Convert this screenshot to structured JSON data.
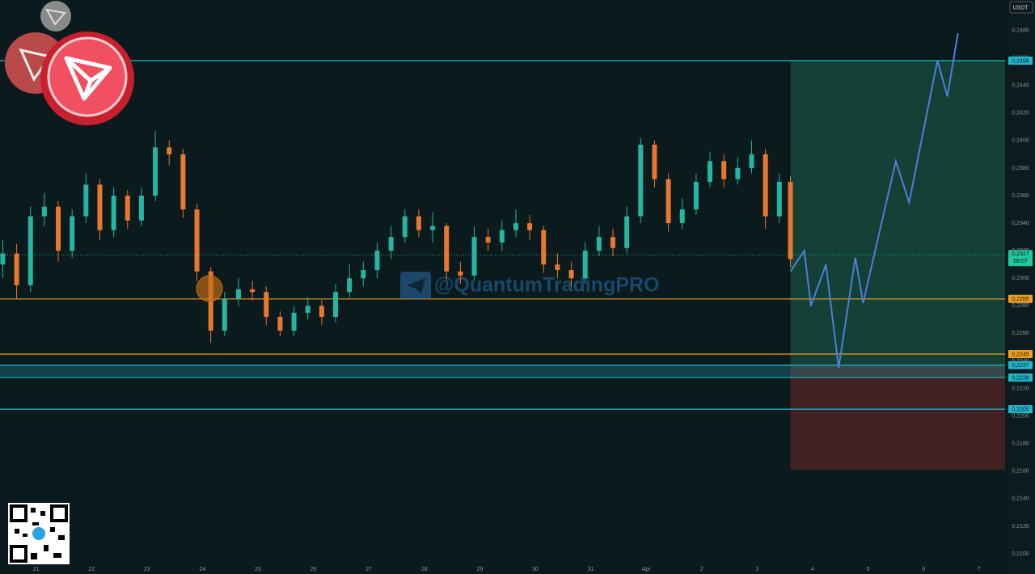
{
  "chart_data": {
    "type": "candlestick",
    "currency": "USDT",
    "watermark": "@QuantumTradingPRO",
    "up_color": "#26b5a0",
    "down_color": "#e8782f",
    "xlim": [
      -0.65,
      17.47
    ],
    "ylim": [
      0.2093,
      0.2502
    ],
    "xticks": [
      {
        "value": 0,
        "label": "21"
      },
      {
        "value": 1,
        "label": "22"
      },
      {
        "value": 2,
        "label": "23"
      },
      {
        "value": 3,
        "label": "24"
      },
      {
        "value": 4,
        "label": "25"
      },
      {
        "value": 5,
        "label": "26"
      },
      {
        "value": 6,
        "label": "27"
      },
      {
        "value": 7,
        "label": "28"
      },
      {
        "value": 8,
        "label": "29"
      },
      {
        "value": 9,
        "label": "30"
      },
      {
        "value": 10,
        "label": "31"
      },
      {
        "value": 11,
        "label": "Apr"
      },
      {
        "value": 12,
        "label": "2"
      },
      {
        "value": 13,
        "label": "3"
      },
      {
        "value": 14,
        "label": "4"
      },
      {
        "value": 15,
        "label": "5"
      },
      {
        "value": 16,
        "label": "6"
      },
      {
        "value": 17,
        "label": "7"
      }
    ],
    "yticks": [
      {
        "value": 0.21,
        "label": "0,2100"
      },
      {
        "value": 0.212,
        "label": "0,2120"
      },
      {
        "value": 0.214,
        "label": "0,2140"
      },
      {
        "value": 0.216,
        "label": "0,2160"
      },
      {
        "value": 0.218,
        "label": "0,2180"
      },
      {
        "value": 0.22,
        "label": "0,2200"
      },
      {
        "value": 0.222,
        "label": "0,2220"
      },
      {
        "value": 0.224,
        "label": "0,2240"
      },
      {
        "value": 0.226,
        "label": "0,2260"
      },
      {
        "value": 0.228,
        "label": "0,2280"
      },
      {
        "value": 0.23,
        "label": "0,2300"
      },
      {
        "value": 0.232,
        "label": "0,2320"
      },
      {
        "value": 0.234,
        "label": "0,2340"
      },
      {
        "value": 0.236,
        "label": "0,2360"
      },
      {
        "value": 0.238,
        "label": "0,2380"
      },
      {
        "value": 0.24,
        "label": "0,2400"
      },
      {
        "value": 0.242,
        "label": "0,2420"
      },
      {
        "value": 0.244,
        "label": "0,2440"
      },
      {
        "value": 0.246,
        "label": "0,2460"
      },
      {
        "value": 0.248,
        "label": "0,2480"
      }
    ],
    "x": [
      -0.6,
      -0.35,
      -0.1,
      0.15,
      0.4,
      0.65,
      0.9,
      1.15,
      1.4,
      1.65,
      1.9,
      2.15,
      2.4,
      2.65,
      2.9,
      3.15,
      3.4,
      3.65,
      3.9,
      4.15,
      4.4,
      4.65,
      4.9,
      5.15,
      5.4,
      5.65,
      5.9,
      6.15,
      6.4,
      6.65,
      6.9,
      7.15,
      7.4,
      7.65,
      7.9,
      8.15,
      8.4,
      8.65,
      8.9,
      9.15,
      9.4,
      9.65,
      9.9,
      10.15,
      10.4,
      10.65,
      10.9,
      11.15,
      11.4,
      11.65,
      11.9,
      12.15,
      12.4,
      12.65,
      12.9,
      13.15,
      13.4,
      13.6
    ],
    "open": [
      0.231,
      0.2318,
      0.2295,
      0.2345,
      0.2352,
      0.232,
      0.2345,
      0.2368,
      0.2335,
      0.236,
      0.2342,
      0.236,
      0.2395,
      0.239,
      0.235,
      0.2305,
      0.2262,
      0.2285,
      0.2292,
      0.229,
      0.2272,
      0.2262,
      0.2275,
      0.228,
      0.2272,
      0.229,
      0.23,
      0.2306,
      0.232,
      0.233,
      0.2345,
      0.2335,
      0.2338,
      0.2305,
      0.2302,
      0.233,
      0.2326,
      0.2335,
      0.234,
      0.2335,
      0.231,
      0.2306,
      0.23,
      0.232,
      0.233,
      0.2322,
      0.2345,
      0.2397,
      0.2372,
      0.234,
      0.235,
      0.237,
      0.2385,
      0.2372,
      0.238,
      0.239,
      0.2345,
      0.237
    ],
    "close": [
      0.2318,
      0.2295,
      0.2345,
      0.2352,
      0.232,
      0.2345,
      0.2368,
      0.2335,
      0.236,
      0.2342,
      0.236,
      0.2395,
      0.239,
      0.235,
      0.2305,
      0.2262,
      0.2285,
      0.2292,
      0.229,
      0.2272,
      0.2262,
      0.2275,
      0.228,
      0.2272,
      0.229,
      0.23,
      0.2306,
      0.232,
      0.233,
      0.2345,
      0.2335,
      0.2338,
      0.2305,
      0.2302,
      0.233,
      0.2326,
      0.2335,
      0.234,
      0.2335,
      0.231,
      0.2306,
      0.23,
      0.232,
      0.233,
      0.2322,
      0.2345,
      0.2397,
      0.2372,
      0.234,
      0.235,
      0.237,
      0.2385,
      0.2372,
      0.238,
      0.239,
      0.2345,
      0.237,
      0.2314
    ],
    "high": [
      0.2328,
      0.2325,
      0.2352,
      0.2362,
      0.2356,
      0.235,
      0.2376,
      0.2372,
      0.2366,
      0.2364,
      0.2366,
      0.2407,
      0.24,
      0.2394,
      0.2354,
      0.2308,
      0.229,
      0.23,
      0.2298,
      0.2294,
      0.2276,
      0.228,
      0.2286,
      0.2284,
      0.2296,
      0.231,
      0.2312,
      0.2326,
      0.2338,
      0.235,
      0.235,
      0.2348,
      0.234,
      0.2312,
      0.2338,
      0.2336,
      0.2342,
      0.235,
      0.2346,
      0.2338,
      0.2318,
      0.2312,
      0.2326,
      0.2338,
      0.2336,
      0.2352,
      0.2402,
      0.24,
      0.2376,
      0.2358,
      0.2376,
      0.2392,
      0.239,
      0.2388,
      0.24,
      0.2394,
      0.2376,
      0.2374
    ],
    "low": [
      0.23,
      0.2285,
      0.229,
      0.2338,
      0.2312,
      0.2315,
      0.234,
      0.2328,
      0.233,
      0.2336,
      0.2338,
      0.2356,
      0.2382,
      0.2344,
      0.2298,
      0.2253,
      0.2258,
      0.228,
      0.2284,
      0.2266,
      0.2258,
      0.2258,
      0.227,
      0.2266,
      0.2268,
      0.2286,
      0.2294,
      0.23,
      0.2314,
      0.2326,
      0.233,
      0.2326,
      0.2298,
      0.2296,
      0.2298,
      0.232,
      0.232,
      0.233,
      0.2328,
      0.2304,
      0.23,
      0.2294,
      0.2296,
      0.2316,
      0.2316,
      0.2318,
      0.234,
      0.2366,
      0.2334,
      0.2336,
      0.2346,
      0.2366,
      0.2366,
      0.2368,
      0.2376,
      0.2336,
      0.234,
      0.2308
    ],
    "projection": {
      "color": "#4f7fd8",
      "x": [
        13.6,
        13.85,
        13.97,
        14.24,
        14.47,
        14.77,
        14.91,
        15.5,
        15.74,
        16.25,
        16.43,
        16.62
      ],
      "values": [
        0.2305,
        0.232,
        0.228,
        0.231,
        0.2235,
        0.2315,
        0.2282,
        0.2385,
        0.2355,
        0.2458,
        0.2432,
        0.2478
      ]
    },
    "target_zone": {
      "top": 0.2458,
      "bottom": 0.2237,
      "x_start": 13.6,
      "color": "rgba(30,110,85,0.45)"
    },
    "stop_zone": {
      "top": 0.2237,
      "bottom": 0.2161,
      "x_start": 13.6,
      "color": "rgba(120,40,40,0.5)"
    },
    "levels": [
      {
        "value": 0.2458,
        "label": "0,2458",
        "color": "#1fb8cc"
      },
      {
        "value": 0.2285,
        "label": "0,2285",
        "color": "#f0a020"
      },
      {
        "value": 0.2245,
        "label": "0,2245",
        "color": "#f0a020"
      },
      {
        "value": 0.2237,
        "label": "0,2237",
        "color": "#1fb8cc"
      },
      {
        "value": 0.2228,
        "label": "0,2228",
        "color": "#1fb8cc"
      },
      {
        "value": 0.2205,
        "label": "0,2205",
        "color": "#1fb8cc"
      }
    ],
    "current_price": {
      "value": 0.2317,
      "label": "0,2317",
      "time": "08:07",
      "color": "#22c7a0"
    }
  }
}
